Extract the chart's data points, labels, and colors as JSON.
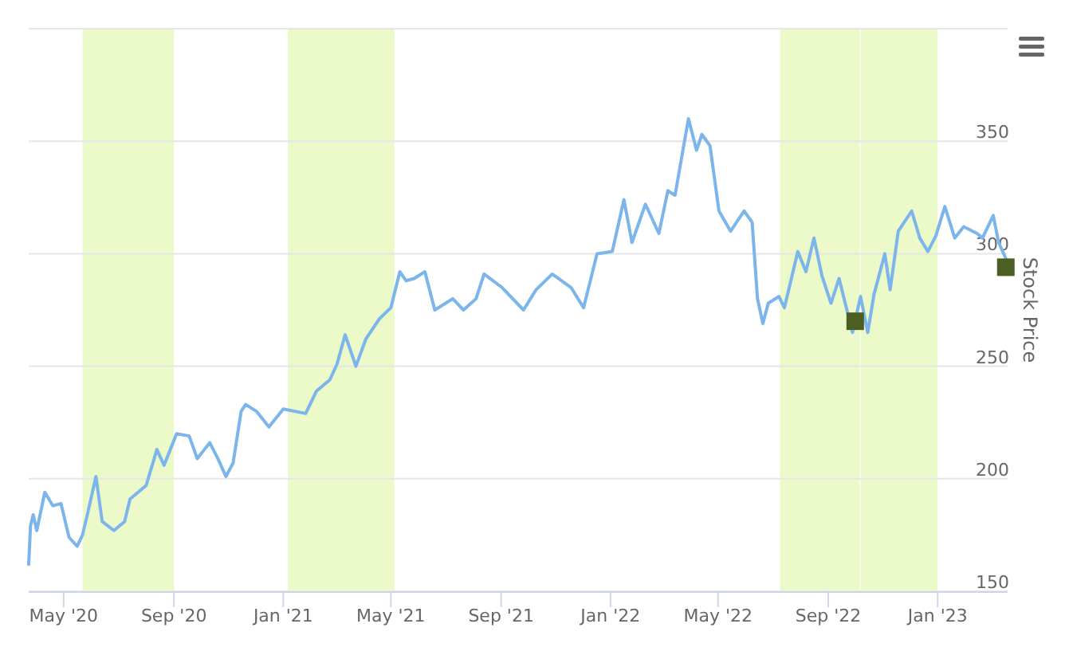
{
  "chart_data": {
    "type": "line",
    "ylabel": "Stock Price",
    "xlim": [
      "2020-03-23",
      "2023-03-20"
    ],
    "ylim": [
      150,
      400
    ],
    "xticks": [
      {
        "value": "2020-05-01",
        "label": "May '20"
      },
      {
        "value": "2020-09-01",
        "label": "Sep '20"
      },
      {
        "value": "2021-01-01",
        "label": "Jan '21"
      },
      {
        "value": "2021-05-01",
        "label": "May '21"
      },
      {
        "value": "2021-09-01",
        "label": "Sep '21"
      },
      {
        "value": "2022-01-01",
        "label": "Jan '22"
      },
      {
        "value": "2022-05-01",
        "label": "May '22"
      },
      {
        "value": "2022-09-01",
        "label": "Sep '22"
      },
      {
        "value": "2023-01-01",
        "label": "Jan '23"
      }
    ],
    "yticks": [
      150,
      200,
      250,
      300,
      350,
      {
        "value": 400,
        "label": null
      }
    ],
    "grid": "y",
    "bands": [
      {
        "axis": "x",
        "from": "2020-05-22",
        "to": "2020-09-01",
        "color": "#ecf9c9"
      },
      {
        "axis": "x",
        "from": "2021-01-06",
        "to": "2021-05-05",
        "color": "#ecf9c9"
      },
      {
        "axis": "x",
        "from": "2022-07-09",
        "to": "2022-10-06",
        "color": "#ecf9c9"
      },
      {
        "axis": "x",
        "from": "2022-10-07",
        "to": "2023-01-01",
        "color": "#ecf9c9"
      }
    ],
    "series": [
      {
        "color": "#7cb5ec",
        "marker": "none",
        "line_style": "solid",
        "x": [
          "2020-03-23",
          "2020-03-25",
          "2020-03-28",
          "2020-04-01",
          "2020-04-10",
          "2020-04-19",
          "2020-04-28",
          "2020-05-07",
          "2020-05-16",
          "2020-05-22",
          "2020-05-28",
          "2020-06-06",
          "2020-06-13",
          "2020-06-26",
          "2020-07-08",
          "2020-07-14",
          "2020-08-01",
          "2020-08-13",
          "2020-08-21",
          "2020-09-04",
          "2020-09-18",
          "2020-09-27",
          "2020-10-11",
          "2020-10-20",
          "2020-10-29",
          "2020-11-06",
          "2020-11-15",
          "2020-11-20",
          "2020-12-02",
          "2020-12-16",
          "2021-01-01",
          "2021-01-26",
          "2021-02-07",
          "2021-02-22",
          "2021-03-02",
          "2021-03-11",
          "2021-03-23",
          "2021-04-03",
          "2021-04-18",
          "2021-05-01",
          "2021-05-11",
          "2021-05-18",
          "2021-05-27",
          "2021-06-08",
          "2021-06-19",
          "2021-07-09",
          "2021-07-21",
          "2021-08-04",
          "2021-08-13",
          "2021-09-02",
          "2021-09-26",
          "2021-10-10",
          "2021-10-28",
          "2021-11-18",
          "2021-12-02",
          "2021-12-17",
          "2022-01-03",
          "2022-01-16",
          "2022-01-25",
          "2022-02-09",
          "2022-02-24",
          "2022-03-06",
          "2022-03-14",
          "2022-03-29",
          "2022-04-07",
          "2022-04-13",
          "2022-04-22",
          "2022-05-02",
          "2022-05-15",
          "2022-05-30",
          "2022-06-08",
          "2022-06-14",
          "2022-06-20",
          "2022-06-26",
          "2022-07-08",
          "2022-07-14",
          "2022-07-29",
          "2022-08-07",
          "2022-08-16",
          "2022-08-25",
          "2022-09-04",
          "2022-09-13",
          "2022-09-28",
          "2022-10-07",
          "2022-10-15",
          "2022-10-22",
          "2022-11-03",
          "2022-11-09",
          "2022-11-18",
          "2022-12-03",
          "2022-12-12",
          "2022-12-21",
          "2022-12-30",
          "2023-01-09",
          "2023-01-20",
          "2023-01-30",
          "2023-02-14",
          "2023-02-20",
          "2023-03-04",
          "2023-03-10",
          "2023-03-19"
        ],
        "values": [
          162,
          179,
          184,
          177,
          194,
          188,
          189,
          174,
          170,
          175,
          185,
          201,
          181,
          177,
          181,
          191,
          197,
          213,
          206,
          220,
          219,
          209,
          216,
          209,
          201,
          207,
          230,
          233,
          230,
          223,
          231,
          229,
          239,
          244,
          251,
          264,
          250,
          262,
          271,
          276,
          292,
          288,
          289,
          292,
          275,
          280,
          275,
          280,
          291,
          285,
          275,
          284,
          291,
          285,
          276,
          300,
          301,
          324,
          305,
          322,
          309,
          328,
          326,
          360,
          346,
          353,
          348,
          319,
          310,
          319,
          314,
          280,
          269,
          278,
          281,
          276,
          301,
          292,
          307,
          290,
          278,
          289,
          265,
          281,
          265,
          282,
          300,
          284,
          310,
          319,
          307,
          301,
          308,
          321,
          307,
          312,
          309,
          307,
          317,
          305,
          297
        ]
      },
      {
        "type": "scatter",
        "color": "#4b5f22",
        "marker": "square",
        "x": [
          "2022-10-01",
          "2023-03-18"
        ],
        "values": [
          270,
          294
        ]
      }
    ]
  }
}
